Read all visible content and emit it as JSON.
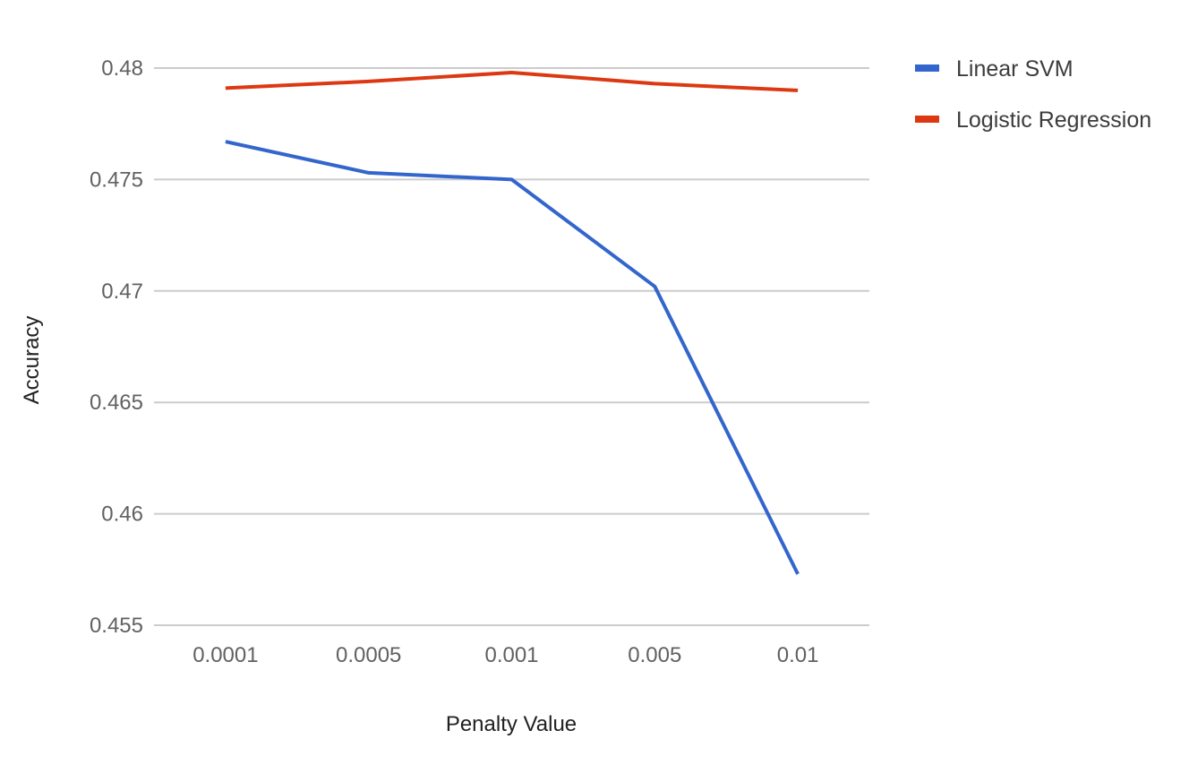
{
  "chart_data": {
    "type": "line",
    "categories": [
      "0.0001",
      "0.0005",
      "0.001",
      "0.005",
      "0.01"
    ],
    "series": [
      {
        "name": "Linear SVM",
        "color": "#3366cc",
        "values": [
          0.4767,
          0.4753,
          0.475,
          0.4702,
          0.4573
        ]
      },
      {
        "name": "Logistic Regression",
        "color": "#dc3912",
        "values": [
          0.4791,
          0.4794,
          0.4798,
          0.4793,
          0.479
        ]
      }
    ],
    "xlabel": "Penalty Value",
    "ylabel": "Accuracy",
    "ylim": [
      0.455,
      0.48
    ],
    "yticks": [
      "0.455",
      "0.46",
      "0.465",
      "0.47",
      "0.475",
      "0.48"
    ],
    "grid": true,
    "legend_position": "right"
  }
}
